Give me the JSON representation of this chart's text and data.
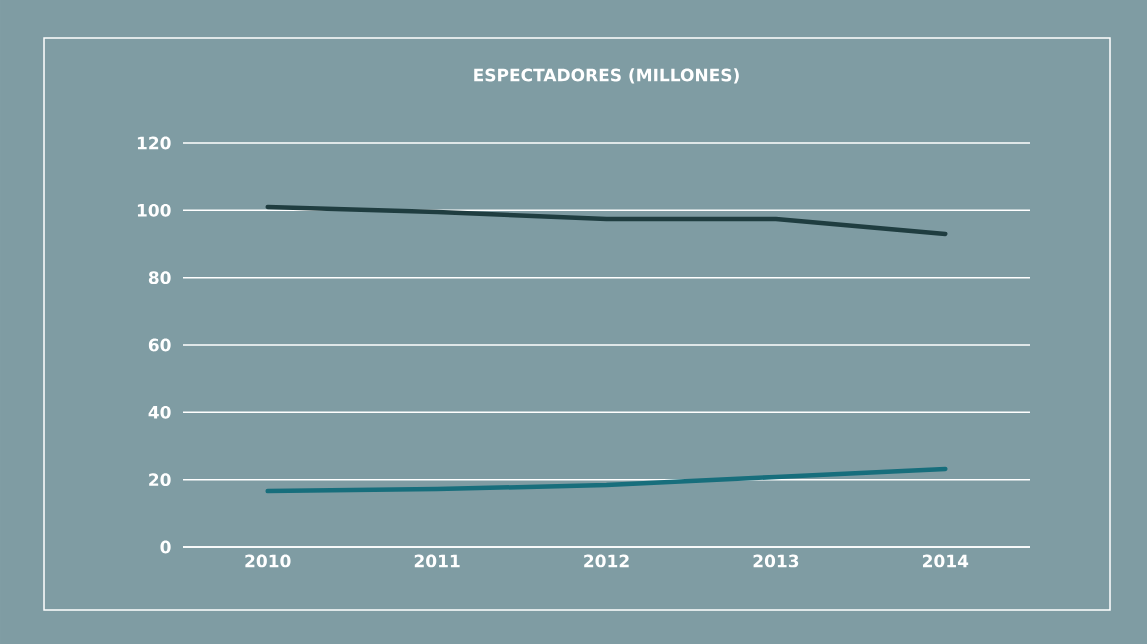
{
  "chart_data": {
    "type": "line",
    "title": "ESPECTADORES (MILLONES)",
    "categories": [
      "2010",
      "2011",
      "2012",
      "2013",
      "2014"
    ],
    "series": [
      {
        "color": "#1f3d40",
        "values": [
          101,
          99.5,
          97.4,
          97.4,
          93
        ]
      },
      {
        "color": "#176e7c",
        "values": [
          16.6,
          17.2,
          18.4,
          20.8,
          23.2
        ]
      }
    ],
    "ylim": [
      0,
      120
    ],
    "yticks": [
      0,
      20,
      40,
      60,
      80,
      100,
      120
    ],
    "grid": "y",
    "legend": false,
    "marker": "none",
    "line_style": "solid"
  }
}
